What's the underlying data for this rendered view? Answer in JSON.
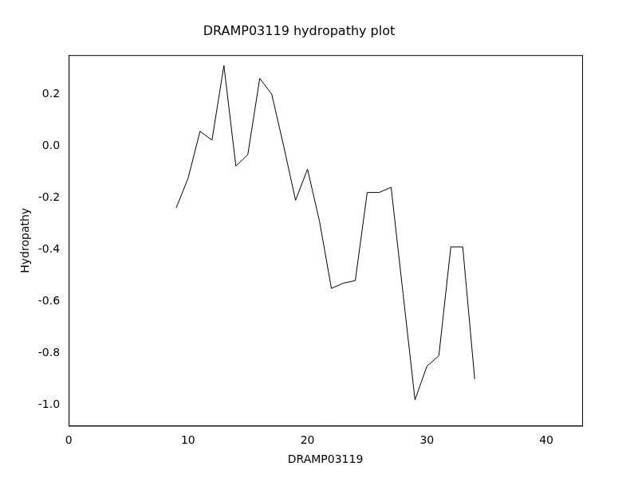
{
  "chart_data": {
    "type": "line",
    "title": "DRAMP03119 hydropathy plot",
    "x_label": "DRAMP03119",
    "y_label": "Hydropathy",
    "x": [
      9,
      10,
      11,
      12,
      13,
      14,
      15,
      16,
      17,
      18,
      19,
      20,
      21,
      22,
      23,
      24,
      25,
      26,
      27,
      28,
      29,
      30,
      31,
      32,
      33,
      34
    ],
    "values": [
      -0.24,
      -0.125,
      0.056,
      0.022,
      0.31,
      -0.078,
      -0.034,
      0.26,
      0.2,
      0.0,
      -0.21,
      -0.09,
      -0.29,
      -0.55,
      -0.53,
      -0.52,
      -0.18,
      -0.18,
      -0.16,
      -0.57,
      -0.98,
      -0.85,
      -0.81,
      -0.39,
      -0.39,
      -0.9
    ],
    "color": "#000000",
    "xlim": [
      0,
      43
    ],
    "xticks": [
      0,
      10,
      20,
      30,
      40
    ],
    "ylim": [
      -1.08,
      0.35
    ],
    "yticks": [
      {
        "value": -1.0,
        "label": "-1.0"
      },
      -0.8,
      -0.6,
      -0.4,
      -0.2,
      {
        "value": 0,
        "label": "0.0"
      },
      0.2
    ],
    "grid": false
  }
}
